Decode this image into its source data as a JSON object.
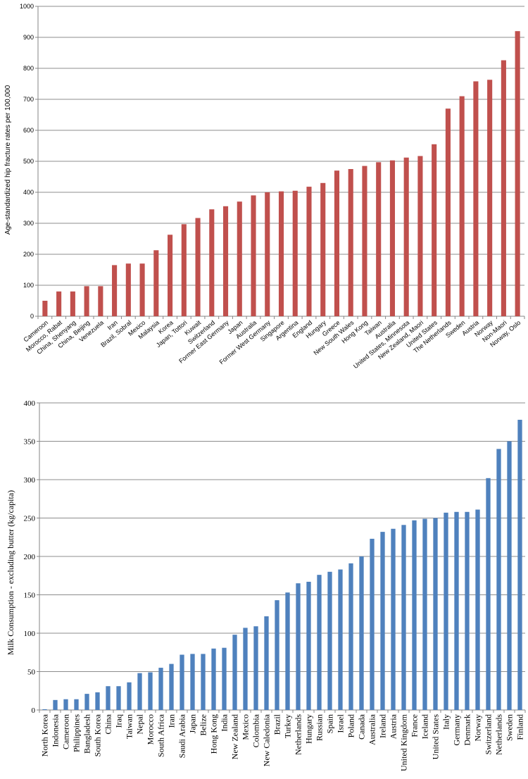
{
  "chart_data": [
    {
      "type": "bar",
      "title": "",
      "xlabel": "",
      "ylabel": "Age-standardized hip fracture rates per 100,000",
      "ylim": [
        0,
        1000
      ],
      "yticks": [
        0,
        100,
        200,
        300,
        400,
        500,
        600,
        700,
        800,
        900,
        1000
      ],
      "grid": true,
      "legend": "none",
      "bar_color": "#c0504d",
      "categories": [
        "Cameroon",
        "Morocco, Rabat",
        "China, Shenyang",
        "China, Beijing",
        "Venezuela",
        "Iran",
        "Brazil, Sobral",
        "Mexico",
        "Malaysia",
        "Korea",
        "Japan, Tottori",
        "Kuwait",
        "Switzerland",
        "Former East Germany",
        "Japan",
        "Australia",
        "Former West Germany",
        "Singapore",
        "Argentina",
        "England",
        "Hungary",
        "Greece",
        "New South Wales",
        "Hong Kong",
        "Taiwan",
        "Australia",
        "United States, Minnesota",
        "New Zealand, Maori",
        "United States",
        "The Netherlands",
        "Sweden",
        "Austria",
        "Norway",
        "Non-Maori",
        "Norway, Oslo"
      ],
      "values": [
        50,
        80,
        80,
        97,
        97,
        165,
        170,
        170,
        213,
        263,
        297,
        317,
        345,
        355,
        370,
        390,
        400,
        403,
        405,
        418,
        430,
        470,
        475,
        485,
        497,
        503,
        512,
        517,
        555,
        670,
        710,
        758,
        763,
        826,
        920
      ]
    },
    {
      "type": "bar",
      "title": "",
      "xlabel": "",
      "ylabel": "Milk Consumption - excluding butter (kg/capita)",
      "ylim": [
        0,
        400
      ],
      "yticks": [
        0,
        50,
        100,
        150,
        200,
        250,
        300,
        350,
        400
      ],
      "grid": true,
      "legend": "none",
      "bar_color": "#4f81bd",
      "categories": [
        "North Korea",
        "Indonesia",
        "Cameroon",
        "Philippines",
        "Bangladesh",
        "South Korea",
        "China",
        "Iraq",
        "Taiwan",
        "Nepal",
        "Morocco",
        "South Africa",
        "Iran",
        "Saudi Arabia",
        "Japan",
        "Belize",
        "Hong Kong",
        "India",
        "New Zealand",
        "Mexico",
        "Colombia",
        "New Caledonia",
        "Brazil",
        "Turkey",
        "Netherlands",
        "Hungary",
        "Russian",
        "Spain",
        "Israel",
        "Poland",
        "Canada",
        "Australia",
        "Ireland",
        "Austria",
        "United Kingdom",
        "France",
        "Iceland",
        "United States",
        "Italy",
        "Germany",
        "Denmark",
        "Norway",
        "Switzerland",
        "Netherlands",
        "Sweden",
        "Finland"
      ],
      "values": [
        1,
        13,
        14,
        14,
        21,
        23,
        31,
        31,
        36,
        48,
        49,
        55,
        60,
        72,
        73,
        73,
        80,
        81,
        98,
        107,
        109,
        122,
        143,
        153,
        165,
        167,
        176,
        180,
        183,
        191,
        200,
        223,
        232,
        236,
        241,
        247,
        249,
        250,
        257,
        258,
        258,
        261,
        302,
        340,
        350,
        378
      ]
    }
  ]
}
